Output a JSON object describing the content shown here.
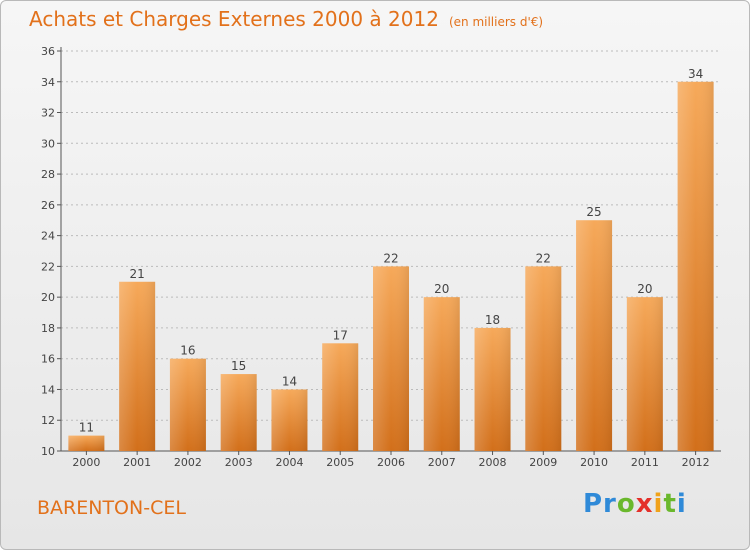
{
  "header": {
    "title": "Achats et Charges Externes 2000 à 2012",
    "subtitle": "(en milliers d'€)"
  },
  "footer": {
    "place": "BARENTON-CEL",
    "logo": "Proxiti"
  },
  "colors": {
    "title": "#e2711b",
    "bar_top": "#f6a95a",
    "bar_bottom": "#d26f1a",
    "grid": "#bbbbbb"
  },
  "chart_data": {
    "type": "bar",
    "title": "Achats et Charges Externes 2000 à 2012",
    "subtitle": "(en milliers d'€)",
    "categories": [
      "2000",
      "2001",
      "2002",
      "2003",
      "2004",
      "2005",
      "2006",
      "2007",
      "2008",
      "2009",
      "2010",
      "2011",
      "2012"
    ],
    "values": [
      11,
      21,
      16,
      15,
      14,
      17,
      22,
      20,
      18,
      22,
      25,
      20,
      34
    ],
    "ylim": [
      10,
      36
    ],
    "yticks": [
      10,
      12,
      14,
      16,
      18,
      20,
      22,
      24,
      26,
      28,
      30,
      32,
      34,
      36
    ],
    "grid": true,
    "xlabel": "",
    "ylabel": ""
  }
}
